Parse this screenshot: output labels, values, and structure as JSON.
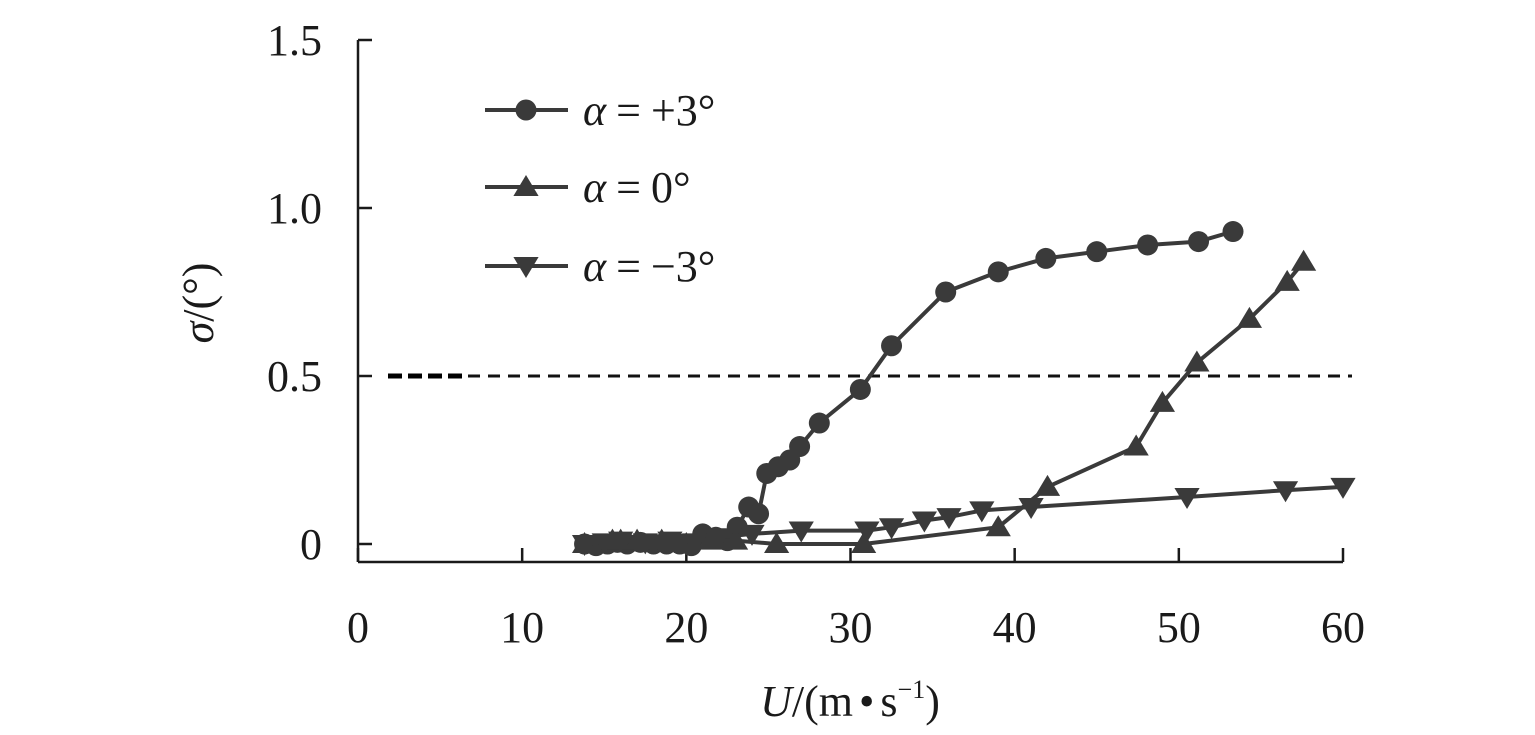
{
  "chart_data": {
    "type": "line",
    "xlabel": {
      "var": "U",
      "unit_open": "/(m",
      "unit_dot": "•",
      "unit_s": "s",
      "unit_exp": "−1",
      "unit_close": ")"
    },
    "ylabel": {
      "var": "σ",
      "unit": "/(°)"
    },
    "xlim": [
      0,
      60
    ],
    "ylim": [
      0,
      1.5
    ],
    "x_ticks": [
      0,
      10,
      20,
      30,
      40,
      50,
      60
    ],
    "x_tick_labels": [
      "0",
      "10",
      "20",
      "30",
      "40",
      "50",
      "60"
    ],
    "y_ticks": [
      0,
      0.5,
      1.0,
      1.5
    ],
    "y_tick_labels": [
      "0",
      "0.5",
      "1.0",
      "1.5"
    ],
    "grid": false,
    "legend_position": "top-left",
    "reference_line": {
      "y": 0.5,
      "style": "dashed"
    },
    "series": [
      {
        "name": "+3°",
        "marker": "circle",
        "x": [
          13.8,
          14.5,
          15.2,
          15.8,
          16.4,
          17.2,
          18.0,
          18.8,
          19.6,
          20.3,
          21.0,
          21.8,
          22.5,
          23.1,
          23.8,
          24.4,
          24.9,
          25.6,
          26.3,
          26.9,
          28.1,
          30.6,
          32.5,
          35.8,
          39.0,
          41.9,
          45.0,
          48.1,
          51.2,
          53.3
        ],
        "y": [
          0.0,
          -0.005,
          0.0,
          0.005,
          0.0,
          0.005,
          0.0,
          0.0,
          0.0,
          -0.005,
          0.03,
          0.02,
          0.01,
          0.05,
          0.11,
          0.09,
          0.21,
          0.23,
          0.25,
          0.29,
          0.36,
          0.46,
          0.59,
          0.75,
          0.81,
          0.85,
          0.87,
          0.89,
          0.9,
          0.93
        ]
      },
      {
        "name": "0°",
        "marker": "triangle-up",
        "x": [
          13.8,
          15.5,
          16.0,
          17.0,
          18.5,
          20.0,
          21.5,
          23.0,
          25.5,
          30.8,
          39.0,
          42.0,
          47.4,
          49.0,
          51.1,
          54.3,
          56.6,
          57.6
        ],
        "y": [
          0.0,
          0.01,
          0.01,
          0.01,
          0.01,
          0.0,
          0.01,
          0.01,
          0.0,
          0.0,
          0.05,
          0.17,
          0.29,
          0.42,
          0.54,
          0.67,
          0.78,
          0.84
        ]
      },
      {
        "name": "−3°",
        "marker": "triangle-down",
        "x": [
          13.8,
          15.0,
          16.0,
          17.5,
          19.0,
          20.5,
          22.0,
          24.0,
          27.0,
          31.0,
          32.5,
          34.5,
          36.0,
          38.0,
          41.0,
          50.5,
          56.5,
          60.0
        ],
        "y": [
          0.0,
          0.005,
          0.01,
          0.005,
          0.01,
          0.005,
          0.02,
          0.03,
          0.04,
          0.04,
          0.05,
          0.07,
          0.08,
          0.1,
          0.11,
          0.14,
          0.16,
          0.17
        ]
      }
    ]
  },
  "legend": {
    "symbol": "α",
    "equals": "="
  },
  "colors": {
    "series": "#3a3a3a",
    "axis": "#1a1a1a",
    "background": "#ffffff"
  }
}
